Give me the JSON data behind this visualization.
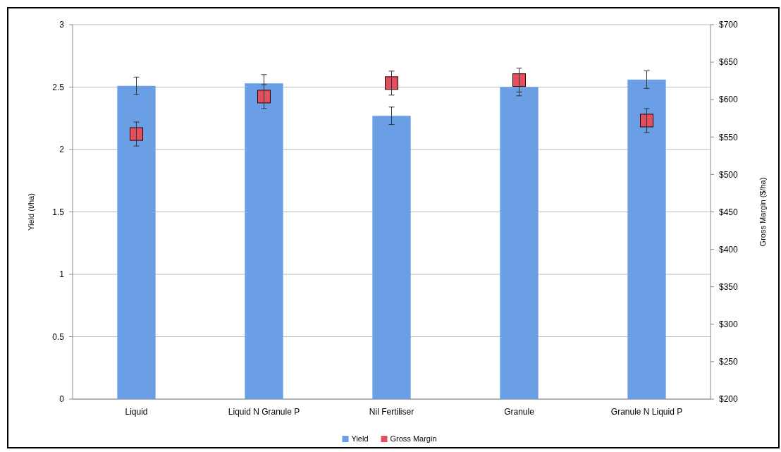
{
  "chart_data": {
    "type": "bar",
    "categories": [
      "Liquid",
      "Liquid N Granule P",
      "Nil Fertiliser",
      "Granule",
      "Granule N Liquid P"
    ],
    "ylabel": "Yield (t/ha)",
    "y2label": "Gross Margin ($/ha)",
    "ylim": [
      0,
      3
    ],
    "yticks": [
      0,
      0.5,
      1,
      1.5,
      2,
      2.5,
      3
    ],
    "y2lim": [
      200,
      700
    ],
    "y2ticks": [
      {
        "value": 200,
        "label": "$200"
      },
      {
        "value": 250,
        "label": "$250"
      },
      {
        "value": 300,
        "label": "$300"
      },
      {
        "value": 350,
        "label": "$350"
      },
      {
        "value": 400,
        "label": "$400"
      },
      {
        "value": 450,
        "label": "$450"
      },
      {
        "value": 500,
        "label": "$500"
      },
      {
        "value": 550,
        "label": "$550"
      },
      {
        "value": 600,
        "label": "$600"
      },
      {
        "value": 650,
        "label": "$650"
      },
      {
        "value": 700,
        "label": "$700"
      }
    ],
    "grid": "y",
    "legend": "bottom",
    "series": [
      {
        "name": "Yield",
        "color": "#6a9fe6",
        "values": [
          2.51,
          2.53,
          2.27,
          2.5,
          2.56
        ],
        "errors": [
          0.07,
          0.07,
          0.07,
          0.07,
          0.07
        ]
      },
      {
        "name": "Gross Margin",
        "type": "scatter",
        "axis": "y2",
        "marker": "square",
        "color": "#e0505f",
        "values": [
          554,
          604,
          622,
          626,
          572
        ],
        "errors": [
          16,
          16,
          16,
          16,
          16
        ]
      }
    ]
  }
}
